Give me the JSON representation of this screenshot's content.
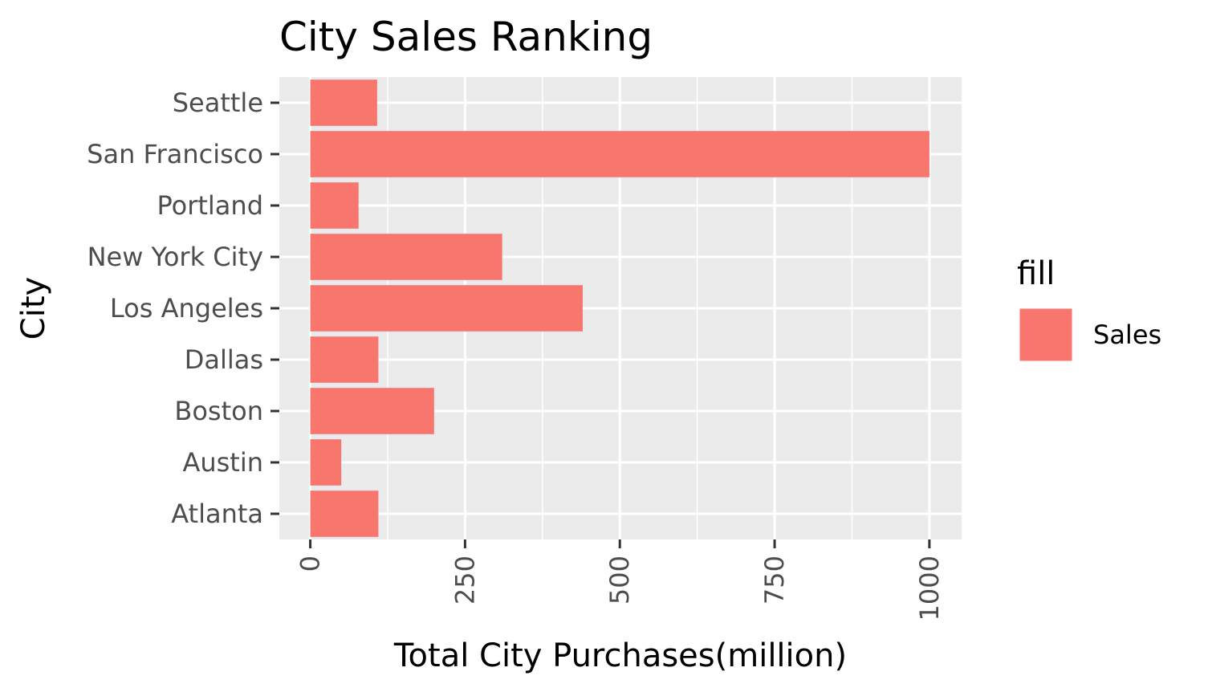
{
  "chart_data": {
    "type": "bar",
    "orientation": "horizontal",
    "title": "City Sales Ranking",
    "xlabel": "Total City Purchases(million)",
    "ylabel": "City",
    "categories": [
      "Atlanta",
      "Austin",
      "Boston",
      "Dallas",
      "Los Angeles",
      "New York City",
      "Portland",
      "San Francisco",
      "Seattle"
    ],
    "series": [
      {
        "name": "Sales",
        "values": [
          110,
          50,
          200,
          110,
          440,
          310,
          78,
          1000,
          108
        ]
      }
    ],
    "xlim": [
      -50,
      1052
    ],
    "xticks": [
      0,
      250,
      500,
      750,
      1000
    ],
    "x_tick_labels": [
      "0",
      "250",
      "500",
      "750",
      "1000"
    ],
    "grid": true,
    "legend": {
      "title": "fill",
      "position": "right",
      "entries": [
        "Sales"
      ]
    },
    "colors": {
      "bar": "#F8766D",
      "panel": "#EBEBEB",
      "grid": "#FFFFFF"
    }
  }
}
